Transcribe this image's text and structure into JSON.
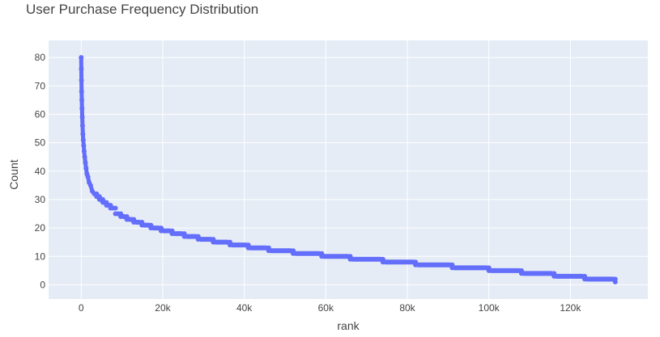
{
  "chart_data": {
    "type": "scatter",
    "title": "User Purchase Frequency Distribution",
    "xlabel": "rank",
    "ylabel": "Count",
    "xlim": [
      -8000,
      139000
    ],
    "ylim": [
      -5,
      86
    ],
    "x_ticks": [
      0,
      20000,
      40000,
      60000,
      80000,
      100000,
      120000
    ],
    "x_tick_labels": [
      "0",
      "20k",
      "40k",
      "60k",
      "80k",
      "100k",
      "120k"
    ],
    "y_ticks": [
      0,
      10,
      20,
      30,
      40,
      50,
      60,
      70,
      80
    ],
    "y_tick_labels": [
      "0",
      "10",
      "20",
      "30",
      "40",
      "50",
      "60",
      "70",
      "80"
    ],
    "grid": true,
    "colors": {
      "marker": "#636efa",
      "plot_bg": "#e5ecf6",
      "grid": "#ffffff",
      "text": "#444444"
    },
    "series": [
      {
        "x": [
          0,
          30,
          60,
          100,
          150,
          200,
          260,
          330,
          410,
          500,
          600,
          720,
          860,
          1020,
          1200,
          1400,
          1650,
          1950,
          2300,
          2700,
          3200,
          3800,
          4500,
          5300,
          6200,
          7200,
          8400,
          9700,
          11200,
          12900,
          14900,
          17100,
          19600,
          22300,
          25300,
          28700,
          32400,
          36500,
          41000,
          46000,
          52000,
          59000,
          66000,
          74000,
          82000,
          91000,
          100000,
          108000,
          116000,
          123500,
          131000
        ],
        "y": [
          80,
          76,
          72,
          68,
          65,
          62,
          59,
          56,
          53,
          51,
          49,
          47,
          45,
          43,
          41,
          39,
          38,
          36,
          35,
          33,
          32,
          31,
          30,
          29,
          28,
          27,
          25,
          24,
          23,
          22,
          21,
          20,
          19,
          18,
          17,
          16,
          15,
          14,
          13,
          12,
          11,
          10,
          9,
          8,
          7,
          6,
          5,
          4,
          3,
          2,
          1
        ]
      }
    ]
  }
}
